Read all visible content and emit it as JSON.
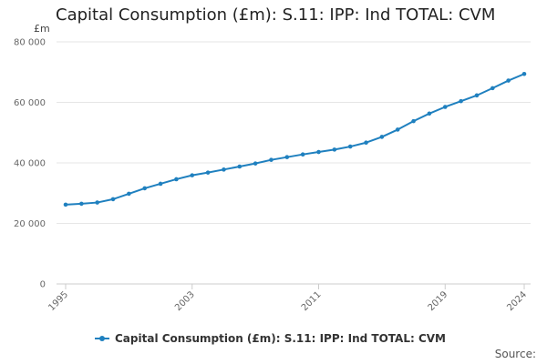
{
  "chart_data": {
    "type": "line",
    "title": "Capital Consumption (£m): S.11: IPP: Ind TOTAL: CVM",
    "ylabel": "£m",
    "xlabel": "",
    "ylim": [
      0,
      80000
    ],
    "yticks": [
      0,
      20000,
      40000,
      60000,
      80000
    ],
    "ytick_labels": [
      "0",
      "20 000",
      "40 000",
      "60 000",
      "80 000"
    ],
    "xlim": [
      1995,
      2024
    ],
    "xticks": [
      1995,
      2003,
      2011,
      2019,
      2024
    ],
    "xtick_labels": [
      "1995",
      "2003",
      "2011",
      "2019",
      "2024"
    ],
    "grid": true,
    "legend_position": "bottom",
    "series": [
      {
        "name": "Capital Consumption (£m): S.11: IPP: Ind TOTAL: CVM",
        "color": "#1f80bf",
        "x": [
          1995,
          1996,
          1997,
          1998,
          1999,
          2000,
          2001,
          2002,
          2003,
          2004,
          2005,
          2006,
          2007,
          2008,
          2009,
          2010,
          2011,
          2012,
          2013,
          2014,
          2015,
          2016,
          2017,
          2018,
          2019,
          2020,
          2021,
          2022,
          2023,
          2024
        ],
        "values": [
          26200,
          26500,
          26900,
          28000,
          29800,
          31600,
          33100,
          34600,
          35900,
          36800,
          37800,
          38800,
          39800,
          41000,
          41900,
          42800,
          43600,
          44400,
          45400,
          46700,
          48600,
          51000,
          53800,
          56300,
          58500,
          60400,
          62300,
          64700,
          67200,
          69400
        ]
      }
    ]
  },
  "legend": {
    "label": "Capital Consumption (£m): S.11: IPP: Ind TOTAL: CVM"
  },
  "source": {
    "label": "Source:"
  }
}
